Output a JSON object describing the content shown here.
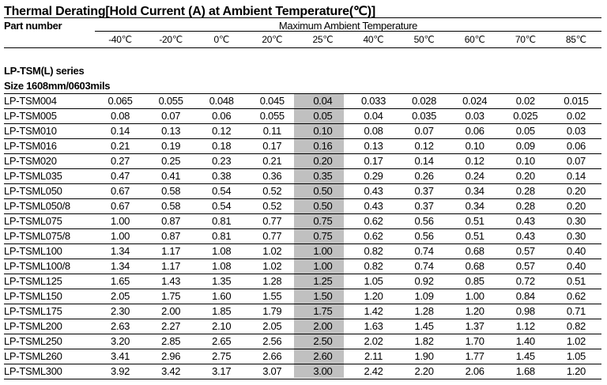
{
  "title": "Thermal Derating[Hold Current (A) at Ambient Temperature(℃)]",
  "part_number_label": "Part number",
  "group_label": "Maximum Ambient Temperature",
  "temperatures": [
    "-40℃",
    "-20℃",
    "0℃",
    "20℃",
    "25℃",
    "40℃",
    "50℃",
    "60℃",
    "70℃",
    "85℃"
  ],
  "highlight_column": "25℃",
  "highlight_color": "#c0c0c0",
  "series": "LP-TSM(L) series",
  "size": "Size 1608mm/0603mils",
  "rows": [
    {
      "part": "LP-TSM004",
      "values": [
        "0.065",
        "0.055",
        "0.048",
        "0.045",
        "0.04",
        "0.033",
        "0.028",
        "0.024",
        "0.02",
        "0.015"
      ]
    },
    {
      "part": "LP-TSM005",
      "values": [
        "0.08",
        "0.07",
        "0.06",
        "0.055",
        "0.05",
        "0.04",
        "0.035",
        "0.03",
        "0.025",
        "0.02"
      ]
    },
    {
      "part": "LP-TSM010",
      "values": [
        "0.14",
        "0.13",
        "0.12",
        "0.11",
        "0.10",
        "0.08",
        "0.07",
        "0.06",
        "0.05",
        "0.03"
      ]
    },
    {
      "part": "LP-TSM016",
      "values": [
        "0.21",
        "0.19",
        "0.18",
        "0.17",
        "0.16",
        "0.13",
        "0.12",
        "0.10",
        "0.09",
        "0.06"
      ]
    },
    {
      "part": "LP-TSM020",
      "values": [
        "0.27",
        "0.25",
        "0.23",
        "0.21",
        "0.20",
        "0.17",
        "0.14",
        "0.12",
        "0.10",
        "0.07"
      ]
    },
    {
      "part": "LP-TSML035",
      "values": [
        "0.47",
        "0.41",
        "0.38",
        "0.36",
        "0.35",
        "0.29",
        "0.26",
        "0.24",
        "0.20",
        "0.14"
      ]
    },
    {
      "part": "LP-TSML050",
      "values": [
        "0.67",
        "0.58",
        "0.54",
        "0.52",
        "0.50",
        "0.43",
        "0.37",
        "0.34",
        "0.28",
        "0.20"
      ]
    },
    {
      "part": "LP-TSML050/8",
      "values": [
        "0.67",
        "0.58",
        "0.54",
        "0.52",
        "0.50",
        "0.43",
        "0.37",
        "0.34",
        "0.28",
        "0.20"
      ]
    },
    {
      "part": "LP-TSML075",
      "values": [
        "1.00",
        "0.87",
        "0.81",
        "0.77",
        "0.75",
        "0.62",
        "0.56",
        "0.51",
        "0.43",
        "0.30"
      ]
    },
    {
      "part": "LP-TSML075/8",
      "values": [
        "1.00",
        "0.87",
        "0.81",
        "0.77",
        "0.75",
        "0.62",
        "0.56",
        "0.51",
        "0.43",
        "0.30"
      ]
    },
    {
      "part": "LP-TSML100",
      "values": [
        "1.34",
        "1.17",
        "1.08",
        "1.02",
        "1.00",
        "0.82",
        "0.74",
        "0.68",
        "0.57",
        "0.40"
      ]
    },
    {
      "part": "LP-TSML100/8",
      "values": [
        "1.34",
        "1.17",
        "1.08",
        "1.02",
        "1.00",
        "0.82",
        "0.74",
        "0.68",
        "0.57",
        "0.40"
      ]
    },
    {
      "part": "LP-TSML125",
      "values": [
        "1.65",
        "1.43",
        "1.35",
        "1.28",
        "1.25",
        "1.05",
        "0.92",
        "0.85",
        "0.72",
        "0.51"
      ]
    },
    {
      "part": "LP-TSML150",
      "values": [
        "2.05",
        "1.75",
        "1.60",
        "1.55",
        "1.50",
        "1.20",
        "1.09",
        "1.00",
        "0.84",
        "0.62"
      ]
    },
    {
      "part": "LP-TSML175",
      "values": [
        "2.30",
        "2.00",
        "1.85",
        "1.79",
        "1.75",
        "1.42",
        "1.28",
        "1.20",
        "0.98",
        "0.71"
      ]
    },
    {
      "part": "LP-TSML200",
      "values": [
        "2.63",
        "2.27",
        "2.10",
        "2.05",
        "2.00",
        "1.63",
        "1.45",
        "1.37",
        "1.12",
        "0.82"
      ]
    },
    {
      "part": "LP-TSML250",
      "values": [
        "3.20",
        "2.85",
        "2.65",
        "2.56",
        "2.50",
        "2.02",
        "1.82",
        "1.70",
        "1.40",
        "1.02"
      ]
    },
    {
      "part": "LP-TSML260",
      "values": [
        "3.41",
        "2.96",
        "2.75",
        "2.66",
        "2.60",
        "2.11",
        "1.90",
        "1.77",
        "1.45",
        "1.05"
      ]
    },
    {
      "part": "LP-TSML300",
      "values": [
        "3.92",
        "3.42",
        "3.17",
        "3.07",
        "3.00",
        "2.42",
        "2.20",
        "2.06",
        "1.68",
        "1.20"
      ]
    }
  ]
}
